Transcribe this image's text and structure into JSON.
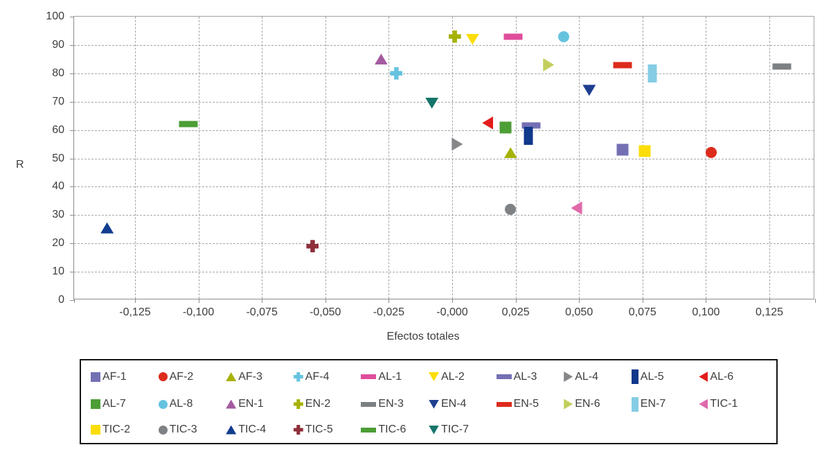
{
  "chart_data": {
    "type": "scatter",
    "title": "",
    "xlabel": "Efectos totales",
    "ylabel": "R",
    "xlim": [
      -0.149,
      0.143
    ],
    "ylim": [
      0,
      100
    ],
    "x_ticks": [
      -0.125,
      -0.1,
      -0.075,
      -0.05,
      -0.025,
      0,
      0.025,
      0.05,
      0.075,
      0.1,
      0.125
    ],
    "x_tick_labels": [
      "-0,125",
      "-0,100",
      "-0,075",
      "-0,050",
      "-0,025",
      "-0,000",
      "0,025",
      "0,050",
      "0,075",
      "0,100",
      "0,125"
    ],
    "y_ticks": [
      0,
      10,
      20,
      30,
      40,
      50,
      60,
      70,
      80,
      90,
      100
    ],
    "grid": "dashed",
    "legend_position": "bottom-box",
    "series": [
      {
        "name": "AF-1",
        "marker": "square",
        "color": "#7470b4",
        "x": 0.067,
        "y": 53
      },
      {
        "name": "AF-2",
        "marker": "circle",
        "color": "#dd2b1c",
        "x": 0.102,
        "y": 52
      },
      {
        "name": "AF-3",
        "marker": "tri-up",
        "color": "#a6b204",
        "x": 0.023,
        "y": 52
      },
      {
        "name": "AF-4",
        "marker": "plus",
        "color": "#66c3e0",
        "x": -0.022,
        "y": 80
      },
      {
        "name": "AL-1",
        "marker": "hbar",
        "color": "#e04d9b",
        "x": 0.024,
        "y": 93
      },
      {
        "name": "AL-2",
        "marker": "tri-down",
        "color": "#fcdd09",
        "x": 0.008,
        "y": 92
      },
      {
        "name": "AL-3",
        "marker": "hbar",
        "color": "#7470b4",
        "x": 0.031,
        "y": 61.5
      },
      {
        "name": "AL-4",
        "marker": "tri-right",
        "color": "#85878a",
        "x": 0.002,
        "y": 55
      },
      {
        "name": "AL-5",
        "marker": "vbar",
        "color": "#10388c",
        "x": 0.03,
        "y": 58
      },
      {
        "name": "AL-6",
        "marker": "tri-left",
        "color": "#e31d1c",
        "x": 0.014,
        "y": 62.5
      },
      {
        "name": "AL-7",
        "marker": "square",
        "color": "#4c9e35",
        "x": 0.021,
        "y": 61
      },
      {
        "name": "AL-8",
        "marker": "circle",
        "color": "#66c3e0",
        "x": 0.044,
        "y": 93
      },
      {
        "name": "EN-1",
        "marker": "tri-up",
        "color": "#a35ba0",
        "x": -0.028,
        "y": 85
      },
      {
        "name": "EN-2",
        "marker": "plus",
        "color": "#a6b204",
        "x": 0.001,
        "y": 93
      },
      {
        "name": "EN-3",
        "marker": "hbar",
        "color": "#7d8083",
        "x": 0.13,
        "y": 82.5
      },
      {
        "name": "EN-4",
        "marker": "tri-down",
        "color": "#1d3e90",
        "x": 0.054,
        "y": 74
      },
      {
        "name": "EN-5",
        "marker": "hbar",
        "color": "#dd2b1c",
        "x": 0.067,
        "y": 83
      },
      {
        "name": "EN-6",
        "marker": "tri-right",
        "color": "#c3cf5c",
        "x": 0.038,
        "y": 83
      },
      {
        "name": "EN-7",
        "marker": "vbar",
        "color": "#84cde4",
        "x": 0.079,
        "y": 80
      },
      {
        "name": "TIC-1",
        "marker": "tri-left",
        "color": "#e06aab",
        "x": 0.049,
        "y": 32.5
      },
      {
        "name": "TIC-2",
        "marker": "square",
        "color": "#fcdd09",
        "x": 0.076,
        "y": 52.5
      },
      {
        "name": "TIC-3",
        "marker": "circle",
        "color": "#7f8285",
        "x": 0.023,
        "y": 32
      },
      {
        "name": "TIC-4",
        "marker": "tri-up",
        "color": "#123d8f",
        "x": -0.136,
        "y": 25.5
      },
      {
        "name": "TIC-5",
        "marker": "plus",
        "color": "#8e2f3a",
        "x": -0.055,
        "y": 19
      },
      {
        "name": "TIC-6",
        "marker": "hbar",
        "color": "#4c9e35",
        "x": -0.104,
        "y": 62
      },
      {
        "name": "TIC-7",
        "marker": "tri-down",
        "color": "#15756b",
        "x": -0.008,
        "y": 69.5
      }
    ]
  }
}
